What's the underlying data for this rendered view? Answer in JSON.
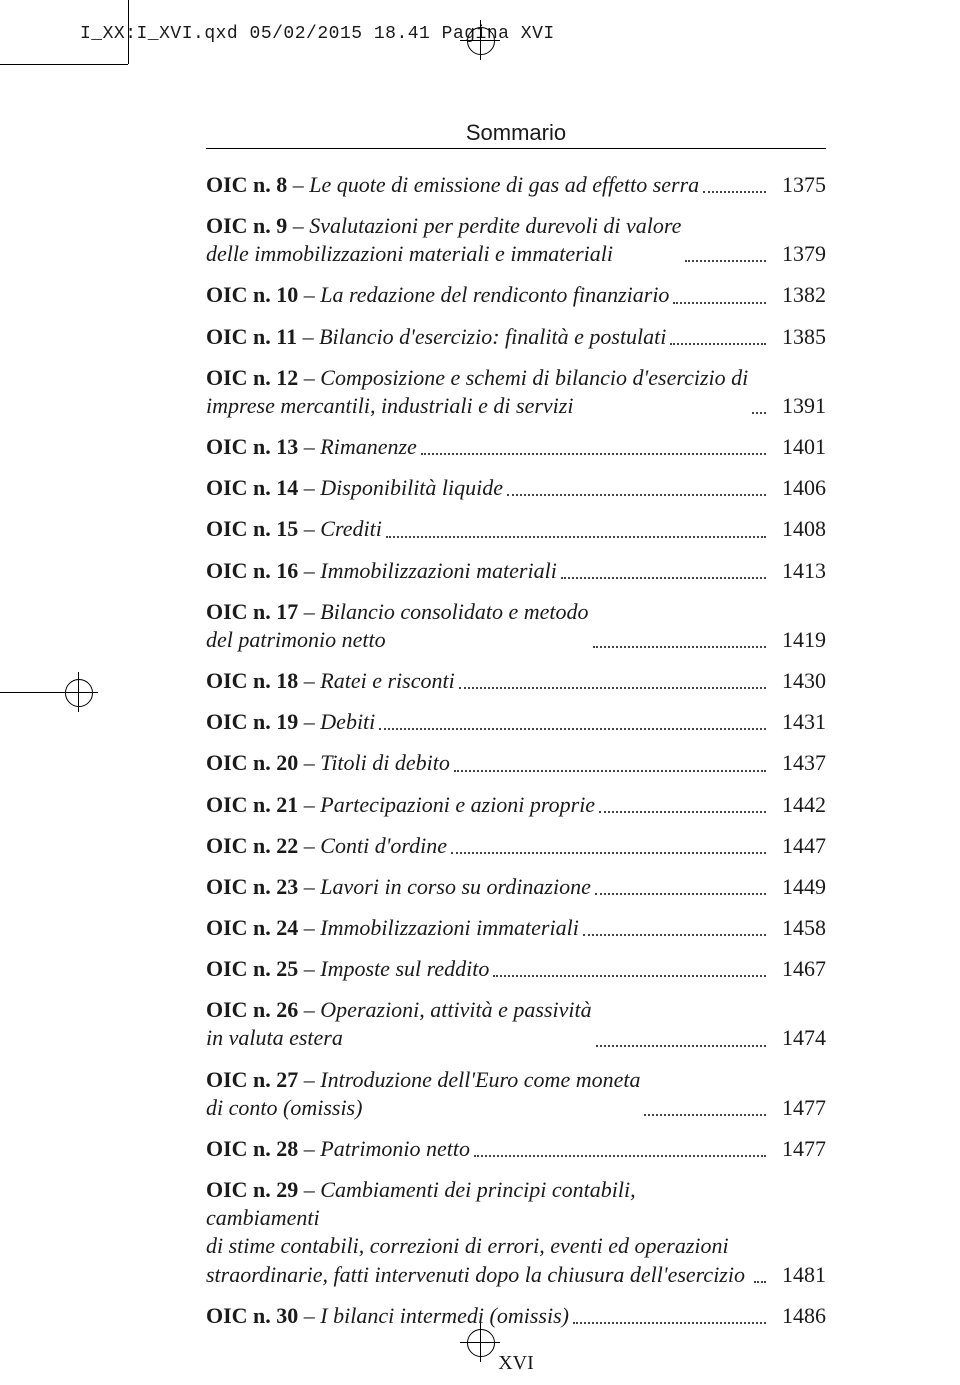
{
  "header": {
    "file_stamp": "I_XX:I_XVI.qxd  05/02/2015  18.41  Pagina XVI"
  },
  "sommario": {
    "title": "Sommario",
    "folio": "XVI"
  },
  "entries": [
    {
      "label": "OIC n. 8",
      "title": "Le quote di emissione di gas ad effetto serra",
      "page": "1375"
    },
    {
      "label": "OIC n. 9",
      "title": "Svalutazioni per perdite durevoli di valore",
      "cont": "delle immobilizzazioni materiali e immateriali",
      "page": "1379"
    },
    {
      "label": "OIC n. 10",
      "title": "La redazione del rendiconto finanziario",
      "page": "1382"
    },
    {
      "label": "OIC n. 11",
      "title": "Bilancio d'esercizio: finalità e postulati",
      "page": "1385"
    },
    {
      "label": "OIC n. 12",
      "title": "Composizione e schemi di bilancio d'esercizio di",
      "cont": "imprese mercantili, industriali e di servizi",
      "page": "1391"
    },
    {
      "label": "OIC n. 13",
      "title": "Rimanenze",
      "page": "1401"
    },
    {
      "label": "OIC n. 14",
      "title": "Disponibilità liquide",
      "page": "1406"
    },
    {
      "label": "OIC n. 15",
      "title": "Crediti",
      "page": "1408"
    },
    {
      "label": "OIC n. 16",
      "title": "Immobilizzazioni materiali",
      "page": "1413"
    },
    {
      "label": "OIC n. 17",
      "title": "Bilancio consolidato e metodo",
      "cont": "del patrimonio netto",
      "page": "1419"
    },
    {
      "label": "OIC n. 18",
      "title": "Ratei e risconti",
      "page": "1430"
    },
    {
      "label": "OIC n. 19",
      "title": "Debiti",
      "page": "1431"
    },
    {
      "label": "OIC n. 20",
      "title": "Titoli di debito",
      "page": "1437"
    },
    {
      "label": "OIC n. 21",
      "title": "Partecipazioni e azioni proprie",
      "page": "1442"
    },
    {
      "label": "OIC n. 22",
      "title": "Conti d'ordine",
      "page": "1447"
    },
    {
      "label": "OIC n. 23",
      "title": "Lavori in corso su ordinazione",
      "page": "1449"
    },
    {
      "label": "OIC n. 24",
      "title": "Immobilizzazioni immateriali",
      "page": "1458"
    },
    {
      "label": "OIC n. 25",
      "title": "Imposte sul reddito",
      "page": "1467"
    },
    {
      "label": "OIC n. 26",
      "title": "Operazioni, attività e passività",
      "cont": "in valuta estera",
      "page": "1474"
    },
    {
      "label": "OIC n. 27",
      "title": "Introduzione dell'Euro come moneta",
      "cont": "di conto (omissis)",
      "page": "1477"
    },
    {
      "label": "OIC n. 28",
      "title": "Patrimonio netto",
      "page": "1477"
    },
    {
      "label": "OIC n. 29",
      "title": "Cambiamenti dei principi contabili, cambiamenti",
      "cont": "di stime contabili, correzioni di errori, eventi ed operazioni straordinarie, fatti intervenuti dopo la chiusura dell'esercizio",
      "page": "1481"
    },
    {
      "label": "OIC n. 30",
      "title": "I bilanci intermedi (omissis)",
      "page": "1486"
    }
  ]
}
